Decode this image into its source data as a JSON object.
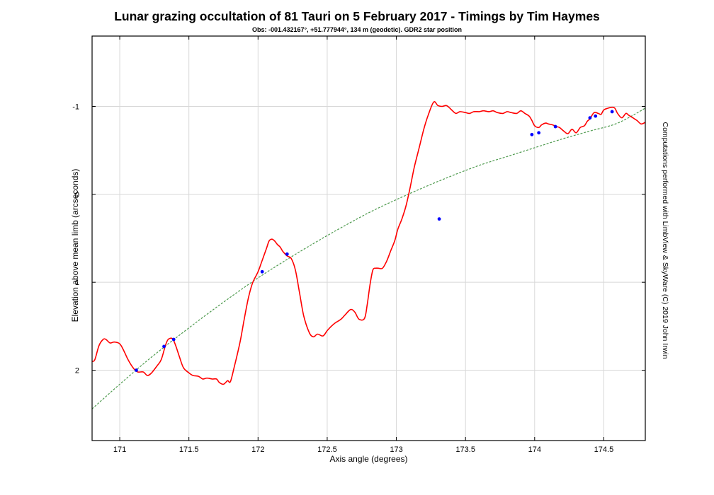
{
  "chart_data": {
    "type": "line",
    "title": "Lunar grazing occultation of 81 Tauri on 5 February 2017 - Timings by Tim Haymes",
    "subtitle": "Obs: -001.432167°, +51.777944°, 134 m (geodetic). GDR2 star position",
    "xlabel": "Axis angle (degrees)",
    "ylabel": "Elevation above mean limb (arcseconds)",
    "side_note": "Computations performed with LimbView & SkyWare (C) 2019 John Irwin",
    "xlim": [
      170.8,
      174.8
    ],
    "ylim": [
      2.8,
      -1.8
    ],
    "y_inverted": true,
    "grid": true,
    "x_ticks": [
      171,
      171.5,
      172,
      172.5,
      173,
      173.5,
      174,
      174.5
    ],
    "x_tick_labels": [
      "171",
      "171.5",
      "172",
      "172.5",
      "173",
      "173.5",
      "174",
      "174.5"
    ],
    "y_ticks": [
      -1,
      0,
      1,
      2
    ],
    "y_tick_labels": [
      "-1",
      "0",
      "1",
      "2"
    ],
    "colors": {
      "limb": "#ff0000",
      "path": "#4e9a4e",
      "events": "#0000ff",
      "grid": "#d8d8d8"
    },
    "series": [
      {
        "role": "lunar limb profile",
        "x": [
          170.8,
          170.82,
          170.85,
          170.88,
          170.9,
          170.93,
          170.96,
          171.0,
          171.03,
          171.06,
          171.1,
          171.13,
          171.17,
          171.2,
          171.23,
          171.27,
          171.3,
          171.33,
          171.35,
          171.38,
          171.4,
          171.43,
          171.46,
          171.5,
          171.53,
          171.57,
          171.6,
          171.63,
          171.67,
          171.7,
          171.72,
          171.75,
          171.78,
          171.8,
          171.83,
          171.87,
          171.9,
          171.93,
          171.96,
          172.0,
          172.03,
          172.06,
          172.08,
          172.1,
          172.12,
          172.14,
          172.16,
          172.18,
          172.21,
          172.24,
          172.27,
          172.3,
          172.33,
          172.37,
          172.4,
          172.43,
          172.47,
          172.5,
          172.53,
          172.56,
          172.6,
          172.63,
          172.67,
          172.7,
          172.73,
          172.77,
          172.79,
          172.81,
          172.83,
          172.85,
          172.87,
          172.9,
          172.93,
          172.96,
          172.99,
          173.01,
          173.04,
          173.07,
          173.1,
          173.13,
          173.17,
          173.2,
          173.23,
          173.27,
          173.3,
          173.33,
          173.36,
          173.38,
          173.4,
          173.43,
          173.46,
          173.5,
          173.53,
          173.56,
          173.6,
          173.63,
          173.67,
          173.7,
          173.73,
          173.77,
          173.8,
          173.83,
          173.87,
          173.9,
          173.93,
          173.96,
          173.98,
          174.0,
          174.03,
          174.05,
          174.08,
          174.1,
          174.13,
          174.16,
          174.18,
          174.21,
          174.24,
          174.27,
          174.3,
          174.33,
          174.36,
          174.38,
          174.4,
          174.43,
          174.46,
          174.48,
          174.5,
          174.53,
          174.56,
          174.58,
          174.6,
          174.63,
          174.66,
          174.68,
          174.71,
          174.74,
          174.77,
          174.8
        ],
        "y": [
          1.9,
          1.88,
          1.72,
          1.65,
          1.65,
          1.69,
          1.68,
          1.7,
          1.78,
          1.88,
          1.98,
          2.02,
          2.02,
          2.06,
          2.03,
          1.95,
          1.88,
          1.72,
          1.65,
          1.64,
          1.7,
          1.84,
          1.97,
          2.03,
          2.06,
          2.07,
          2.1,
          2.09,
          2.1,
          2.1,
          2.14,
          2.16,
          2.12,
          2.13,
          1.95,
          1.68,
          1.42,
          1.18,
          1.01,
          0.88,
          0.75,
          0.62,
          0.53,
          0.51,
          0.53,
          0.57,
          0.6,
          0.65,
          0.7,
          0.73,
          0.86,
          1.12,
          1.38,
          1.57,
          1.62,
          1.59,
          1.61,
          1.55,
          1.5,
          1.46,
          1.42,
          1.37,
          1.31,
          1.34,
          1.42,
          1.41,
          1.25,
          1.02,
          0.86,
          0.84,
          0.84,
          0.84,
          0.76,
          0.64,
          0.52,
          0.4,
          0.28,
          0.13,
          -0.08,
          -0.31,
          -0.56,
          -0.75,
          -0.9,
          -1.05,
          -1.01,
          -1.0,
          -1.01,
          -0.99,
          -0.96,
          -0.92,
          -0.94,
          -0.93,
          -0.92,
          -0.94,
          -0.94,
          -0.95,
          -0.94,
          -0.95,
          -0.93,
          -0.92,
          -0.94,
          -0.93,
          -0.92,
          -0.95,
          -0.92,
          -0.89,
          -0.84,
          -0.78,
          -0.76,
          -0.79,
          -0.81,
          -0.8,
          -0.79,
          -0.77,
          -0.76,
          -0.72,
          -0.69,
          -0.74,
          -0.7,
          -0.76,
          -0.78,
          -0.83,
          -0.86,
          -0.93,
          -0.92,
          -0.91,
          -0.96,
          -0.98,
          -0.99,
          -0.98,
          -0.92,
          -0.87,
          -0.92,
          -0.9,
          -0.87,
          -0.84,
          -0.8,
          -0.82
        ]
      },
      {
        "role": "path of the star",
        "style": "dashed",
        "x": [
          170.8,
          171.0,
          171.2,
          171.4,
          171.6,
          171.8,
          172.0,
          172.2,
          172.4,
          172.6,
          172.8,
          173.0,
          173.2,
          173.4,
          173.6,
          173.8,
          174.0,
          174.2,
          174.4,
          174.6,
          174.8
        ],
        "y": [
          2.44,
          2.16,
          1.89,
          1.64,
          1.4,
          1.17,
          0.95,
          0.75,
          0.56,
          0.38,
          0.21,
          0.06,
          -0.08,
          -0.21,
          -0.33,
          -0.43,
          -0.53,
          -0.63,
          -0.72,
          -0.81,
          -0.98
        ]
      }
    ],
    "events": {
      "x": [
        171.12,
        171.32,
        171.39,
        172.03,
        172.21,
        173.31,
        173.98,
        174.03,
        174.15,
        174.4,
        174.44,
        174.56
      ],
      "y": [
        2.0,
        1.73,
        1.65,
        0.88,
        0.68,
        0.28,
        -0.68,
        -0.7,
        -0.77,
        -0.87,
        -0.89,
        -0.94
      ]
    }
  }
}
